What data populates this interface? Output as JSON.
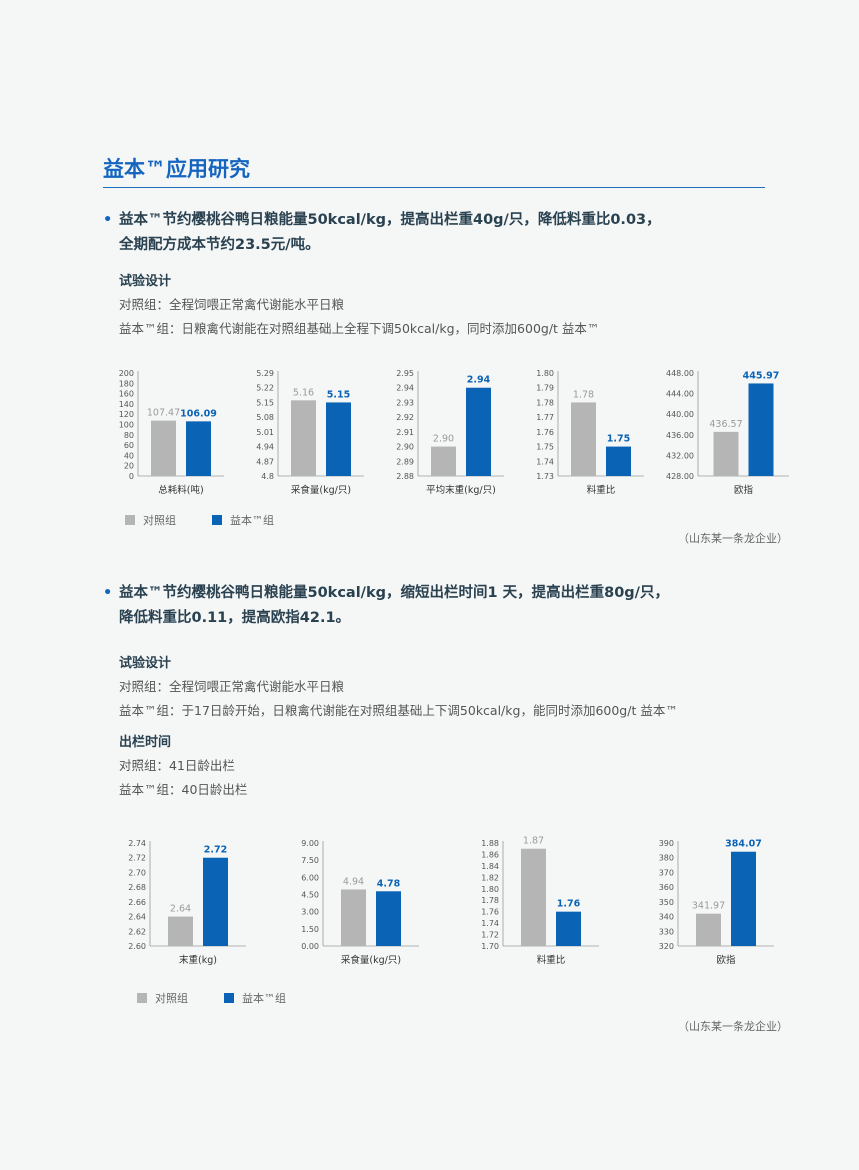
{
  "page_title": "益本™应用研究",
  "colors": {
    "control": "#b5b5b5",
    "treatment": "#0b63b5",
    "accent": "#1565c0"
  },
  "section1": {
    "bullet_line1": "益本™节约樱桃谷鸭日粮能量50kcal/kg，提高出栏重40g/只，降低料重比0.03，",
    "bullet_line2": "全期配方成本节约23.5元/吨。",
    "design_title": "试验设计",
    "control_text": "对照组：全程饲喂正常禽代谢能水平日粮",
    "treatment_text": "益本™组：日粮禽代谢能在对照组基础上全程下调50kcal/kg，同时添加600g/t 益本™",
    "legend": {
      "control": "对照组",
      "treatment": "益本™组"
    },
    "source": "（山东某一条龙企业）"
  },
  "section2": {
    "bullet_line1": "益本™节约樱桃谷鸭日粮能量50kcal/kg，缩短出栏时间1 天，提高出栏重80g/只，",
    "bullet_line2": "降低料重比0.11，提高欧指42.1。",
    "design_title": "试验设计",
    "control_text": "对照组：全程饲喂正常禽代谢能水平日粮",
    "treatment_text": "益本™组：于17日龄开始，日粮禽代谢能在对照组基础上下调50kcal/kg，能同时添加600g/t 益本™",
    "slaughter_title": "出栏时间",
    "slaughter_control": "对照组：41日龄出栏",
    "slaughter_treatment": "益本™组：40日龄出栏",
    "legend": {
      "control": "对照组",
      "treatment": "益本™组"
    },
    "source": "（山东某一条龙企业）"
  },
  "chart_data": [
    {
      "type": "bar",
      "xlabel": "总耗料(吨)",
      "ylim": [
        0,
        200
      ],
      "ticks": [
        "200",
        "180",
        "160",
        "140",
        "120",
        "100",
        "80",
        "60",
        "40",
        "20",
        "0"
      ],
      "control": 107.47,
      "treatment": 106.09,
      "control_label": "107.47",
      "treatment_label": "106.09"
    },
    {
      "type": "bar",
      "xlabel": "采食量(kg/只)",
      "ylim": [
        4.8,
        5.29
      ],
      "ticks": [
        "5.29",
        "5.22",
        "5.15",
        "5.08",
        "5.01",
        "4.94",
        "4.87",
        "4.8"
      ],
      "control": 5.16,
      "treatment": 5.15,
      "control_label": "5.16",
      "treatment_label": "5.15"
    },
    {
      "type": "bar",
      "xlabel": "平均末重(kg/只)",
      "ylim": [
        2.88,
        2.95
      ],
      "ticks": [
        "2.95",
        "2.94",
        "2.93",
        "2.92",
        "2.91",
        "2.90",
        "2.89",
        "2.88"
      ],
      "control": 2.9,
      "treatment": 2.94,
      "control_label": "2.90",
      "treatment_label": "2.94"
    },
    {
      "type": "bar",
      "xlabel": "料重比",
      "ylim": [
        1.73,
        1.8
      ],
      "ticks": [
        "1.80",
        "1.79",
        "1.78",
        "1.77",
        "1.76",
        "1.75",
        "1.74",
        "1.73"
      ],
      "control": 1.78,
      "treatment": 1.75,
      "control_label": "1.78",
      "treatment_label": "1.75"
    },
    {
      "type": "bar",
      "xlabel": "欧指",
      "ylim": [
        428,
        448
      ],
      "ticks": [
        "448.00",
        "444.00",
        "440.00",
        "436.00",
        "432.00",
        "428.00"
      ],
      "control": 436.57,
      "treatment": 445.97,
      "control_label": "436.57",
      "treatment_label": "445.97"
    },
    {
      "type": "bar",
      "xlabel": "末重(kg)",
      "ylim": [
        2.6,
        2.74
      ],
      "ticks": [
        "2.74",
        "2.72",
        "2.70",
        "2.68",
        "2.66",
        "2.64",
        "2.62",
        "2.60"
      ],
      "control": 2.64,
      "treatment": 2.72,
      "control_label": "2.64",
      "treatment_label": "2.72"
    },
    {
      "type": "bar",
      "xlabel": "采食量(kg/只)",
      "ylim": [
        0,
        9
      ],
      "ticks": [
        "9.00",
        "7.50",
        "6.00",
        "4.50",
        "3.00",
        "1.50",
        "0.00"
      ],
      "control": 4.94,
      "treatment": 4.78,
      "control_label": "4.94",
      "treatment_label": "4.78"
    },
    {
      "type": "bar",
      "xlabel": "料重比",
      "ylim": [
        1.7,
        1.88
      ],
      "ticks": [
        "1.88",
        "1.86",
        "1.84",
        "1.82",
        "1.80",
        "1.78",
        "1.76",
        "1.74",
        "1.72",
        "1.70"
      ],
      "control": 1.87,
      "treatment": 1.76,
      "control_label": "1.87",
      "treatment_label": "1.76"
    },
    {
      "type": "bar",
      "xlabel": "欧指",
      "ylim": [
        320,
        390
      ],
      "ticks": [
        "390",
        "380",
        "370",
        "360",
        "350",
        "340",
        "330",
        "320"
      ],
      "control": 341.97,
      "treatment": 384.07,
      "control_label": "341.97",
      "treatment_label": "384.07"
    }
  ]
}
